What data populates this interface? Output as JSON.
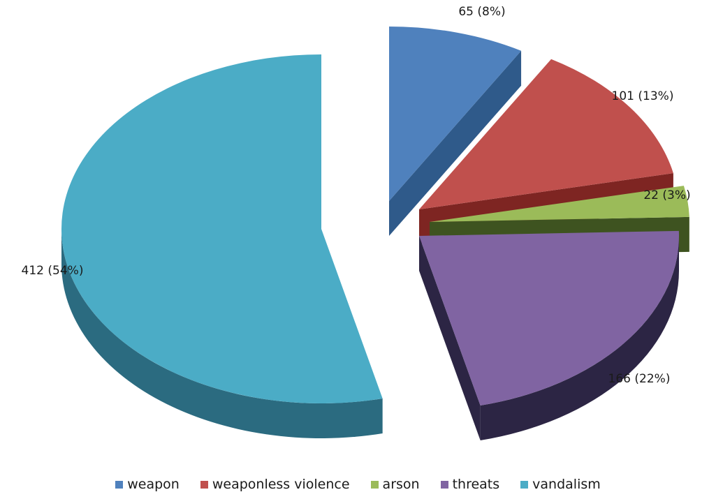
{
  "chart_data": {
    "type": "pie",
    "title": "",
    "categories": [
      "weapon",
      "weaponless violence",
      "arson",
      "threats",
      "vandalism"
    ],
    "values": [
      65,
      101,
      22,
      166,
      412
    ],
    "percent": [
      8,
      13,
      3,
      22,
      54
    ],
    "labels": [
      "65 (8%)",
      "101 (13%)",
      "22 (3%)",
      "166 (22%)",
      "412 (54%)"
    ],
    "exploded": true,
    "three_d": true,
    "legend_position": "bottom",
    "colors": [
      "#4f81bd",
      "#c0504d",
      "#9bbb59",
      "#8064a2",
      "#4bacc6"
    ],
    "side_colors": [
      "#2f5a8a",
      "#7e2522",
      "#3e5320",
      "#2c2544",
      "#2b6b80"
    ]
  }
}
